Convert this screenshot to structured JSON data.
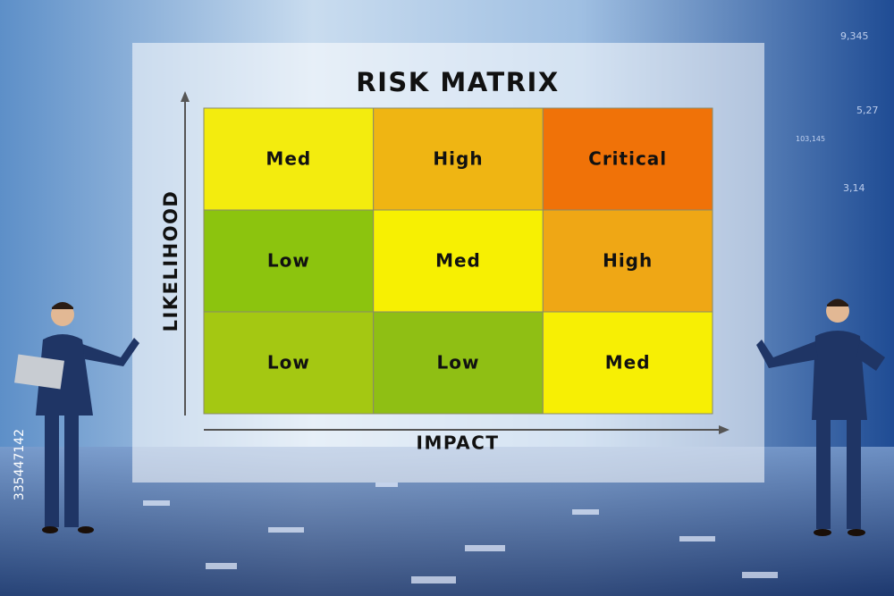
{
  "title": "RISK MATRIX",
  "y_axis_label": "LIKELIHOOD",
  "x_axis_label": "IMPACT",
  "matrix": {
    "rows": [
      [
        {
          "label": "Med",
          "color": "#f3ec0e"
        },
        {
          "label": "High",
          "color": "#efb513"
        },
        {
          "label": "Critical",
          "color": "#f07208"
        }
      ],
      [
        {
          "label": "Low",
          "color": "#8cc40e"
        },
        {
          "label": "Med",
          "color": "#f7f002"
        },
        {
          "label": "High",
          "color": "#efa715"
        }
      ],
      [
        {
          "label": "Low",
          "color": "#a4c812"
        },
        {
          "label": "Low",
          "color": "#8fbf14"
        },
        {
          "label": "Med",
          "color": "#f7ef04"
        }
      ]
    ]
  },
  "background_numbers": [
    "9,345",
    "5,27",
    "103,145",
    "3,14"
  ],
  "stock_id": "335447142"
}
